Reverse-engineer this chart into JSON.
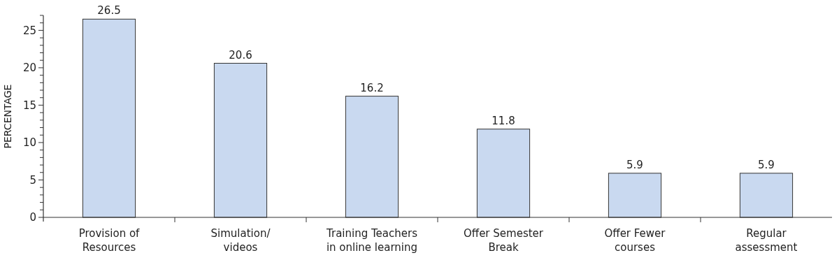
{
  "chart_data": {
    "type": "bar",
    "ylabel": "PERCENTAGE",
    "categories": [
      "Provision of\nResources",
      "Simulation/\nvideos",
      "Training Teachers\nin online learning",
      "Offer Semester\nBreak",
      "Offer Fewer\ncourses",
      "Regular\nassessment"
    ],
    "values": [
      26.5,
      20.6,
      16.2,
      11.8,
      5.9,
      5.9
    ],
    "color": "#c9d9f0",
    "data_labels": true,
    "ylim": [
      0,
      27
    ],
    "yticks": [
      0,
      {
        "value": 1,
        "label": null
      },
      {
        "value": 2,
        "label": null
      },
      {
        "value": 3,
        "label": null
      },
      {
        "value": 4,
        "label": null
      },
      5,
      {
        "value": 6,
        "label": null
      },
      {
        "value": 7,
        "label": null
      },
      {
        "value": 8,
        "label": null
      },
      {
        "value": 9,
        "label": null
      },
      10,
      {
        "value": 11,
        "label": null
      },
      {
        "value": 12,
        "label": null
      },
      {
        "value": 13,
        "label": null
      },
      {
        "value": 14,
        "label": null
      },
      15,
      {
        "value": 16,
        "label": null
      },
      {
        "value": 17,
        "label": null
      },
      {
        "value": 18,
        "label": null
      },
      {
        "value": 19,
        "label": null
      },
      20,
      {
        "value": 21,
        "label": null
      },
      {
        "value": 22,
        "label": null
      },
      {
        "value": 23,
        "label": null
      },
      {
        "value": 24,
        "label": null
      },
      25,
      {
        "value": 26,
        "label": null
      },
      {
        "value": 27,
        "label": null
      }
    ]
  }
}
